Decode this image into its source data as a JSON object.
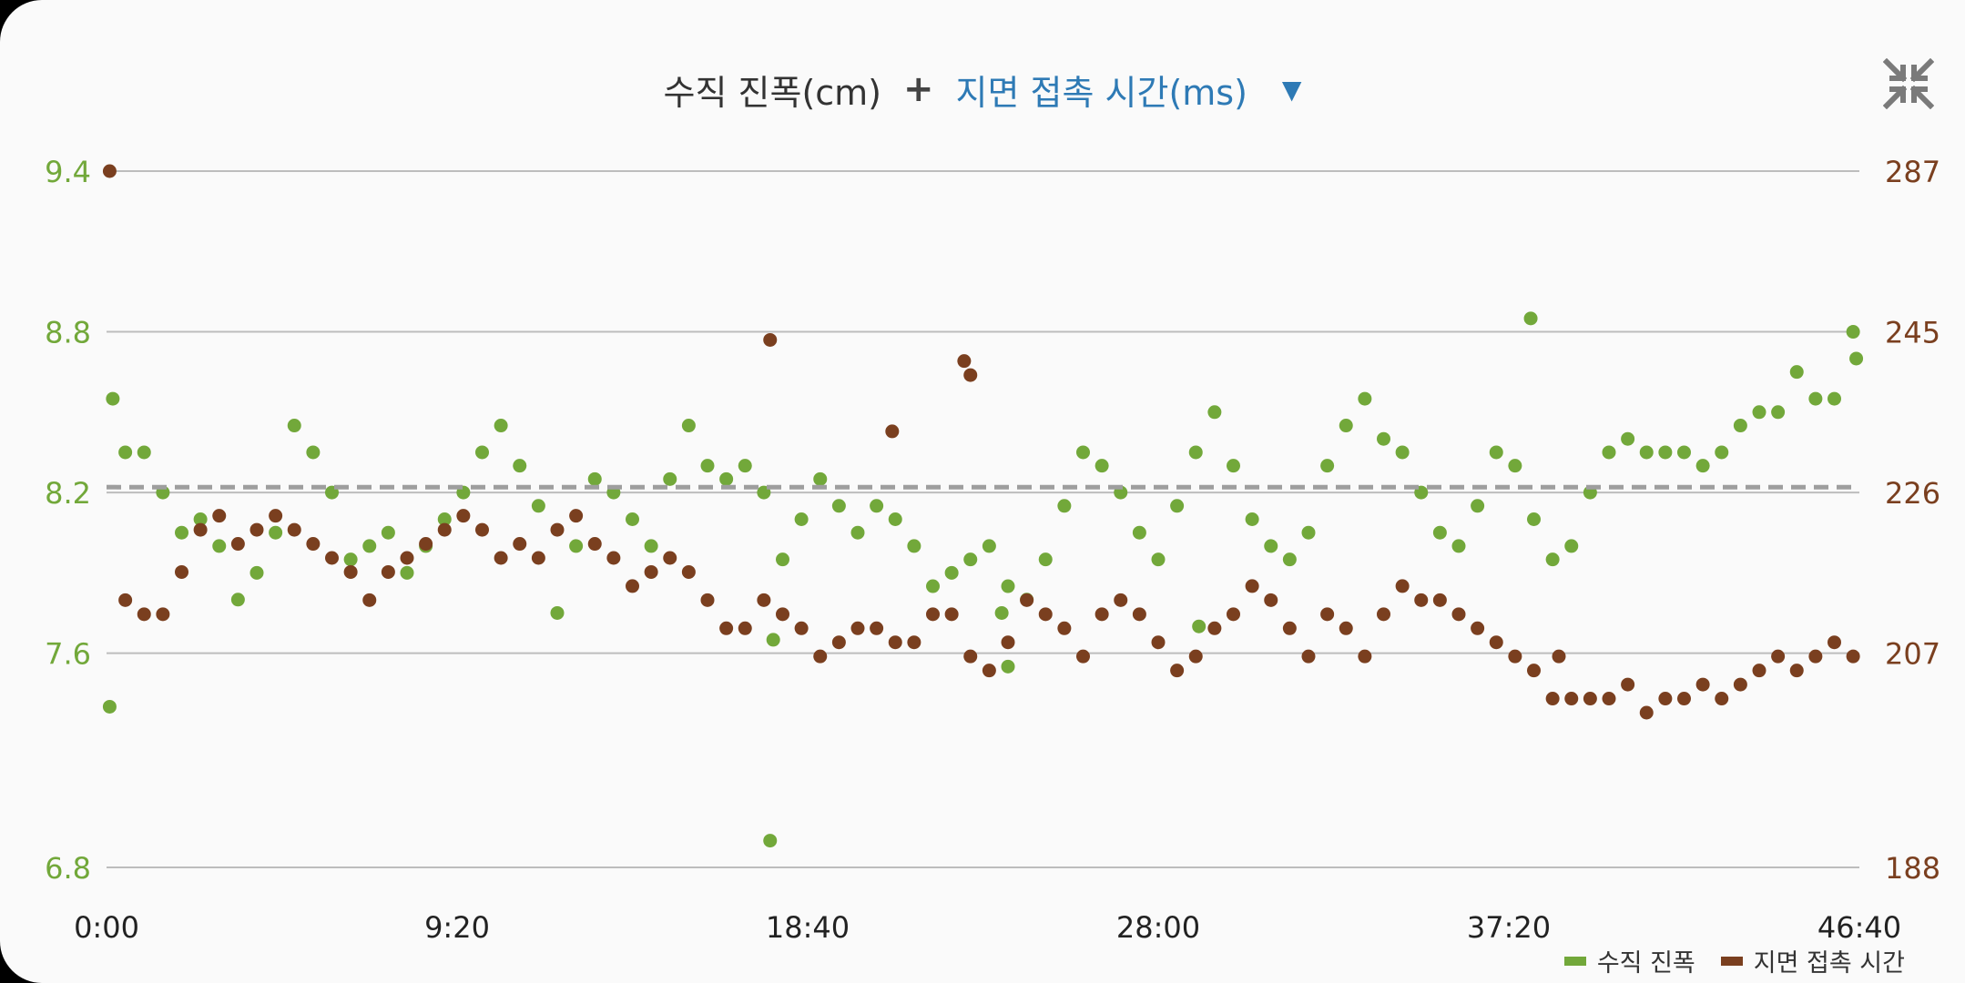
{
  "header": {
    "metric_primary": "수직 진폭(cm)",
    "plus": "+",
    "metric_secondary": "지면 접촉 시간(ms)",
    "dropdown_glyph": "▼",
    "collapse_icon": "collapse-icon"
  },
  "colors": {
    "series1": "#72a83a",
    "series2": "#7a3f1f",
    "left_axis": "#72a83a",
    "right_axis": "#7a3f1f",
    "average_line": "#9e9e9e",
    "grid": "#bdbdbd"
  },
  "legend": {
    "series1_label": "수직 진폭",
    "series2_label": "지면 접촉 시간"
  },
  "chart_data": {
    "type": "scatter",
    "x_ticks": [
      "0:00",
      "9:20",
      "18:40",
      "28:00",
      "37:20",
      "46:40"
    ],
    "xlim": [
      0,
      2800
    ],
    "y_left": {
      "ticks": [
        "9.4",
        "8.8",
        "8.2",
        "7.6",
        "6.8"
      ],
      "ylim": [
        6.8,
        9.4
      ]
    },
    "y_right": {
      "ticks": [
        "287",
        "245",
        "226",
        "207",
        "188"
      ],
      "ylim": [
        188,
        287
      ]
    },
    "average_y_left": 8.22,
    "series": [
      {
        "name": "수직 진폭",
        "axis": "left",
        "points": [
          [
            5,
            7.4
          ],
          [
            30,
            8.35
          ],
          [
            60,
            8.35
          ],
          [
            90,
            8.2
          ],
          [
            120,
            8.05
          ],
          [
            150,
            8.1
          ],
          [
            180,
            8.0
          ],
          [
            210,
            7.8
          ],
          [
            240,
            7.9
          ],
          [
            270,
            8.05
          ],
          [
            300,
            8.45
          ],
          [
            330,
            8.35
          ],
          [
            360,
            8.2
          ],
          [
            390,
            7.95
          ],
          [
            420,
            8.0
          ],
          [
            450,
            8.05
          ],
          [
            480,
            7.9
          ],
          [
            510,
            8.0
          ],
          [
            540,
            8.1
          ],
          [
            570,
            8.2
          ],
          [
            600,
            8.35
          ],
          [
            630,
            8.45
          ],
          [
            660,
            8.3
          ],
          [
            690,
            8.15
          ],
          [
            720,
            7.75
          ],
          [
            750,
            8.0
          ],
          [
            780,
            8.25
          ],
          [
            810,
            8.2
          ],
          [
            840,
            8.1
          ],
          [
            870,
            8.0
          ],
          [
            900,
            8.25
          ],
          [
            930,
            8.45
          ],
          [
            960,
            8.3
          ],
          [
            990,
            8.25
          ],
          [
            1020,
            8.3
          ],
          [
            1050,
            8.2
          ],
          [
            1080,
            7.95
          ],
          [
            1110,
            8.1
          ],
          [
            1140,
            8.25
          ],
          [
            1170,
            8.15
          ],
          [
            1200,
            8.05
          ],
          [
            1230,
            8.15
          ],
          [
            1260,
            8.1
          ],
          [
            1290,
            8.0
          ],
          [
            1320,
            7.85
          ],
          [
            1350,
            7.9
          ],
          [
            1380,
            7.95
          ],
          [
            1410,
            8.0
          ],
          [
            1440,
            7.85
          ],
          [
            1470,
            7.8
          ],
          [
            1500,
            7.95
          ],
          [
            1530,
            8.15
          ],
          [
            1560,
            8.35
          ],
          [
            1590,
            8.3
          ],
          [
            1620,
            8.2
          ],
          [
            1650,
            8.05
          ],
          [
            1680,
            7.95
          ],
          [
            1710,
            8.15
          ],
          [
            1740,
            8.35
          ],
          [
            1770,
            8.5
          ],
          [
            1800,
            8.3
          ],
          [
            1830,
            8.1
          ],
          [
            1860,
            8.0
          ],
          [
            1890,
            7.95
          ],
          [
            1920,
            8.05
          ],
          [
            1950,
            8.3
          ],
          [
            1980,
            8.45
          ],
          [
            2010,
            8.55
          ],
          [
            2040,
            8.4
          ],
          [
            2070,
            8.35
          ],
          [
            2100,
            8.2
          ],
          [
            2130,
            8.05
          ],
          [
            2160,
            8.0
          ],
          [
            2190,
            8.15
          ],
          [
            2220,
            8.35
          ],
          [
            2250,
            8.3
          ],
          [
            2280,
            8.1
          ],
          [
            2310,
            7.95
          ],
          [
            2340,
            8.0
          ],
          [
            2370,
            8.2
          ],
          [
            2400,
            8.35
          ],
          [
            2430,
            8.4
          ],
          [
            2460,
            8.35
          ],
          [
            2490,
            8.35
          ],
          [
            2520,
            8.35
          ],
          [
            2550,
            8.3
          ],
          [
            2580,
            8.35
          ],
          [
            2610,
            8.45
          ],
          [
            2640,
            8.5
          ],
          [
            2670,
            8.5
          ],
          [
            2700,
            8.65
          ],
          [
            2730,
            8.55
          ],
          [
            2760,
            8.55
          ],
          [
            2790,
            8.8
          ],
          [
            2795,
            8.7
          ],
          [
            10,
            8.55
          ],
          [
            1065,
            7.65
          ],
          [
            1060,
            6.9
          ],
          [
            2275,
            8.85
          ],
          [
            1430,
            7.75
          ],
          [
            1440,
            7.55
          ],
          [
            1745,
            7.7
          ]
        ]
      },
      {
        "name": "지면 접촉 시간",
        "axis": "right",
        "points": [
          [
            5,
            287
          ],
          [
            30,
            226
          ],
          [
            60,
            224
          ],
          [
            90,
            224
          ],
          [
            120,
            230
          ],
          [
            150,
            236
          ],
          [
            180,
            238
          ],
          [
            210,
            234
          ],
          [
            240,
            236
          ],
          [
            270,
            238
          ],
          [
            300,
            236
          ],
          [
            330,
            234
          ],
          [
            360,
            232
          ],
          [
            390,
            230
          ],
          [
            420,
            226
          ],
          [
            450,
            230
          ],
          [
            480,
            232
          ],
          [
            510,
            234
          ],
          [
            540,
            236
          ],
          [
            570,
            238
          ],
          [
            600,
            236
          ],
          [
            630,
            232
          ],
          [
            660,
            234
          ],
          [
            690,
            232
          ],
          [
            720,
            236
          ],
          [
            750,
            238
          ],
          [
            780,
            234
          ],
          [
            810,
            232
          ],
          [
            840,
            228
          ],
          [
            870,
            230
          ],
          [
            900,
            232
          ],
          [
            930,
            230
          ],
          [
            960,
            226
          ],
          [
            990,
            222
          ],
          [
            1020,
            222
          ],
          [
            1050,
            226
          ],
          [
            1080,
            224
          ],
          [
            1110,
            222
          ],
          [
            1140,
            218
          ],
          [
            1170,
            220
          ],
          [
            1200,
            222
          ],
          [
            1230,
            222
          ],
          [
            1260,
            220
          ],
          [
            1290,
            220
          ],
          [
            1320,
            224
          ],
          [
            1350,
            224
          ],
          [
            1380,
            218
          ],
          [
            1410,
            216
          ],
          [
            1440,
            220
          ],
          [
            1470,
            226
          ],
          [
            1500,
            224
          ],
          [
            1530,
            222
          ],
          [
            1560,
            218
          ],
          [
            1590,
            224
          ],
          [
            1620,
            226
          ],
          [
            1650,
            224
          ],
          [
            1680,
            220
          ],
          [
            1710,
            216
          ],
          [
            1740,
            218
          ],
          [
            1770,
            222
          ],
          [
            1800,
            224
          ],
          [
            1830,
            228
          ],
          [
            1860,
            226
          ],
          [
            1890,
            222
          ],
          [
            1920,
            218
          ],
          [
            1950,
            224
          ],
          [
            1980,
            222
          ],
          [
            2010,
            218
          ],
          [
            2040,
            224
          ],
          [
            2070,
            228
          ],
          [
            2100,
            226
          ],
          [
            2130,
            226
          ],
          [
            2160,
            224
          ],
          [
            2190,
            222
          ],
          [
            2220,
            220
          ],
          [
            2250,
            218
          ],
          [
            2280,
            216
          ],
          [
            2310,
            212
          ],
          [
            2340,
            212
          ],
          [
            2370,
            212
          ],
          [
            2400,
            212
          ],
          [
            2430,
            214
          ],
          [
            2460,
            210
          ],
          [
            2490,
            212
          ],
          [
            2520,
            212
          ],
          [
            2550,
            214
          ],
          [
            2580,
            212
          ],
          [
            2610,
            214
          ],
          [
            2640,
            216
          ],
          [
            2670,
            218
          ],
          [
            2700,
            216
          ],
          [
            2730,
            218
          ],
          [
            2760,
            220
          ],
          [
            2790,
            218
          ],
          [
            1060,
            263
          ],
          [
            1255,
            250
          ],
          [
            1370,
            260
          ],
          [
            1380,
            258
          ],
          [
            2320,
            218
          ]
        ]
      }
    ]
  }
}
